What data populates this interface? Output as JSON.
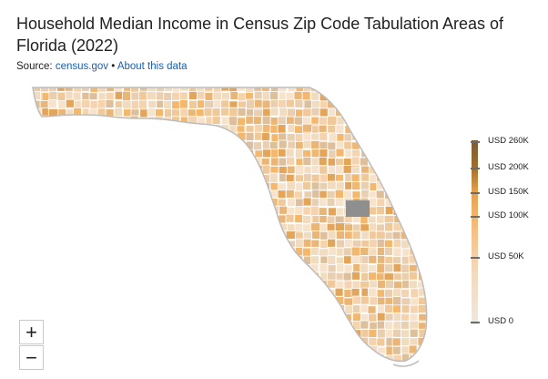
{
  "header": {
    "title": "Household Median Income in Census Zip Code Tabulation Areas of Florida (2022)",
    "source_prefix": "Source: ",
    "source_link": "census.gov",
    "separator": " • ",
    "about_link": "About this data"
  },
  "legend": {
    "ticks": [
      {
        "label": "USD 260K",
        "value": 260000
      },
      {
        "label": "USD 200K",
        "value": 200000
      },
      {
        "label": "USD 150K",
        "value": 150000
      },
      {
        "label": "USD 100K",
        "value": 100000
      },
      {
        "label": "USD 50K",
        "value": 50000
      },
      {
        "label": "USD 0",
        "value": 0
      }
    ],
    "colors": {
      "high": "#7b5a33",
      "upper": "#e5a24a",
      "mid": "#f6c085",
      "low": "#ede8e3",
      "no_data": "#9e9e9e"
    }
  },
  "map": {
    "region": "Florida",
    "outline_color": "#bdbdbd",
    "palette": [
      "#f2dcc0",
      "#efc99a",
      "#eab677",
      "#f5d3ae",
      "#e9cfb1",
      "#f3b86d",
      "#e2a55a",
      "#f7e3cc",
      "#ddbf9c"
    ]
  },
  "controls": {
    "zoom_in": "+",
    "zoom_out": "−"
  }
}
